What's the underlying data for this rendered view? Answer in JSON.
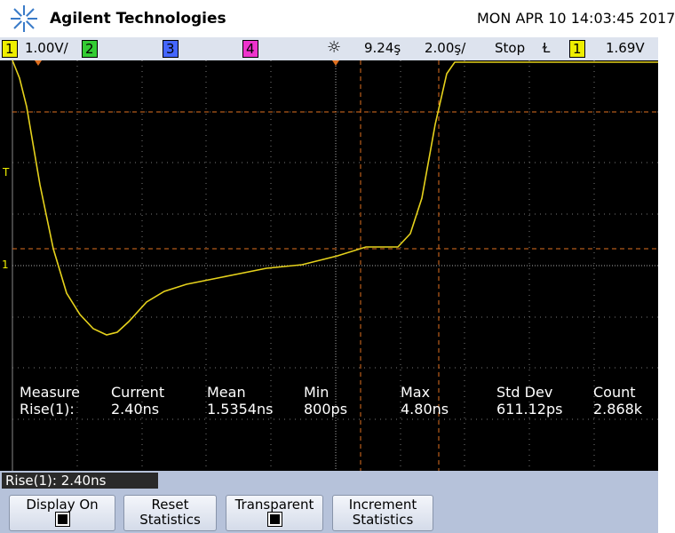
{
  "header": {
    "brand": "Agilent Technologies",
    "datetime": "MON APR 10 14:03:45 2017"
  },
  "status_bar": {
    "ch1": "1",
    "ch1_scale": "1.00V/",
    "ch2": "2",
    "ch3": "3",
    "ch4": "4",
    "delay": "9.24ş",
    "timebase": "2.00ş/",
    "run_state": "Stop",
    "trigger_source": "1",
    "trigger_level": "1.69V"
  },
  "screen": {
    "trigger_marker": "T",
    "ground_marker": "1",
    "measurements": {
      "headers": [
        "Measure",
        "Current",
        "Mean",
        "Min",
        "Max",
        "Std Dev",
        "Count"
      ],
      "row": [
        "Rise(1):",
        "2.40ns",
        "1.5354ns",
        "800ps",
        "4.80ns",
        "611.12ps",
        "2.868k"
      ]
    }
  },
  "softkeys": {
    "title": "Rise(1): 2.40ns",
    "buttons": [
      {
        "lines": [
          "Display On"
        ],
        "checkbox": true
      },
      {
        "lines": [
          "Reset",
          "Statistics"
        ],
        "checkbox": false
      },
      {
        "lines": [
          "Transparent"
        ],
        "checkbox": true
      },
      {
        "lines": [
          "Increment",
          "Statistics"
        ],
        "checkbox": false
      }
    ]
  }
}
